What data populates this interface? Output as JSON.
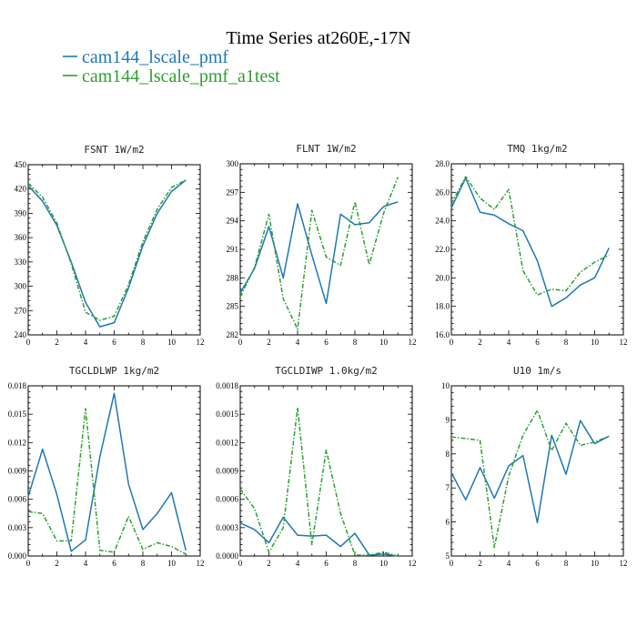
{
  "figure": {
    "title": "Time Series at260E,-17N",
    "legend": [
      {
        "label": "cam144_lscale_pmf",
        "color": "#1f77b4",
        "style": "solid"
      },
      {
        "label": "cam144_lscale_pmf_a1test",
        "color": "#2ca02c",
        "style": "dashed"
      }
    ]
  },
  "chart_data": [
    {
      "type": "line",
      "title": "FSNT 1W/m2",
      "x": [
        0,
        1,
        2,
        3,
        4,
        5,
        6,
        7,
        8,
        9,
        10,
        11
      ],
      "xticks": [
        0,
        2,
        4,
        6,
        8,
        10,
        12
      ],
      "xlim": [
        0,
        12
      ],
      "ylim": [
        240,
        450
      ],
      "yticks": [
        240,
        270,
        300,
        330,
        360,
        390,
        420,
        450
      ],
      "ytick_labels": [
        "240",
        "270",
        "300",
        "330",
        "360",
        "390",
        "420",
        "450"
      ],
      "series": [
        {
          "name": "cam144_lscale_pmf",
          "color": "#1f77b4",
          "dashed": false,
          "values": [
            424,
            405,
            375,
            330,
            280,
            250,
            255,
            298,
            350,
            390,
            417,
            431
          ]
        },
        {
          "name": "cam144_lscale_pmf_a1test",
          "color": "#2ca02c",
          "dashed": true,
          "values": [
            427,
            410,
            378,
            328,
            268,
            258,
            263,
            302,
            355,
            395,
            422,
            431
          ]
        }
      ]
    },
    {
      "type": "line",
      "title": "FLNT 1W/m2",
      "x": [
        0,
        1,
        2,
        3,
        4,
        5,
        6,
        7,
        8,
        9,
        10,
        11
      ],
      "xticks": [
        0,
        2,
        4,
        6,
        8,
        10,
        12
      ],
      "xlim": [
        0,
        12
      ],
      "ylim": [
        282,
        300
      ],
      "yticks": [
        282,
        285,
        288,
        291,
        294,
        297,
        300
      ],
      "ytick_labels": [
        "282",
        "285",
        "288",
        "291",
        "294",
        "297",
        "300"
      ],
      "series": [
        {
          "name": "cam144_lscale_pmf",
          "color": "#1f77b4",
          "dashed": false,
          "values": [
            286.4,
            289.0,
            293.4,
            288.0,
            295.8,
            290.4,
            285.3,
            294.7,
            293.6,
            293.8,
            295.5,
            296.0
          ]
        },
        {
          "name": "cam144_lscale_pmf_a1test",
          "color": "#2ca02c",
          "dashed": true,
          "values": [
            286.0,
            289.1,
            294.7,
            285.8,
            282.6,
            295.1,
            290.2,
            289.3,
            296.0,
            289.4,
            294.8,
            298.6
          ]
        }
      ]
    },
    {
      "type": "line",
      "title": "TMQ 1kg/m2",
      "x": [
        0,
        1,
        2,
        3,
        4,
        5,
        6,
        7,
        8,
        9,
        10,
        11
      ],
      "xticks": [
        0,
        2,
        4,
        6,
        8,
        10,
        12
      ],
      "xlim": [
        0,
        12
      ],
      "ylim": [
        16,
        28
      ],
      "yticks": [
        16,
        18,
        20,
        22,
        24,
        26,
        28
      ],
      "ytick_labels": [
        "16.0",
        "18.0",
        "20.0",
        "22.0",
        "24.0",
        "26.0",
        "28.0"
      ],
      "series": [
        {
          "name": "cam144_lscale_pmf",
          "color": "#1f77b4",
          "dashed": false,
          "values": [
            24.9,
            27.0,
            24.6,
            24.4,
            23.8,
            23.3,
            21.2,
            18.0,
            18.6,
            19.5,
            20.0,
            22.1
          ]
        },
        {
          "name": "cam144_lscale_pmf_a1test",
          "color": "#2ca02c",
          "dashed": true,
          "values": [
            25.2,
            27.1,
            25.6,
            24.8,
            26.2,
            20.5,
            18.8,
            19.2,
            19.1,
            20.4,
            21.1,
            21.6
          ]
        }
      ]
    },
    {
      "type": "line",
      "title": "TGCLDLWP 1kg/m2",
      "x": [
        0,
        1,
        2,
        3,
        4,
        5,
        6,
        7,
        8,
        9,
        10,
        11
      ],
      "xticks": [
        0,
        2,
        4,
        6,
        8,
        10,
        12
      ],
      "xlim": [
        0,
        12
      ],
      "ylim": [
        0,
        0.018
      ],
      "yticks": [
        0,
        0.003,
        0.006,
        0.009,
        0.012,
        0.015,
        0.018
      ],
      "ytick_labels": [
        "0.000",
        "0.003",
        "0.006",
        "0.009",
        "0.012",
        "0.015",
        "0.018"
      ],
      "series": [
        {
          "name": "cam144_lscale_pmf",
          "color": "#1f77b4",
          "dashed": false,
          "values": [
            0.0063,
            0.0113,
            0.0065,
            0.0005,
            0.0017,
            0.0105,
            0.0172,
            0.0076,
            0.0028,
            0.0045,
            0.0067,
            0.0006
          ]
        },
        {
          "name": "cam144_lscale_pmf_a1test",
          "color": "#2ca02c",
          "dashed": true,
          "values": [
            0.0047,
            0.0045,
            0.0016,
            0.0016,
            0.0156,
            0.0006,
            0.0004,
            0.0042,
            0.0007,
            0.0014,
            0.001,
            0.0002
          ]
        }
      ]
    },
    {
      "type": "line",
      "title": "TGCLDIWP 1.0kg/m2",
      "x": [
        0,
        1,
        2,
        3,
        4,
        5,
        6,
        7,
        8,
        9,
        10,
        11
      ],
      "xticks": [
        0,
        2,
        4,
        6,
        8,
        10,
        12
      ],
      "xlim": [
        0,
        12
      ],
      "ylim": [
        0,
        0.0018
      ],
      "yticks": [
        0,
        0.0003,
        0.0006,
        0.0009,
        0.0012,
        0.0015,
        0.0018
      ],
      "ytick_labels": [
        "0.0000",
        "0.0003",
        "0.0006",
        "0.0009",
        "0.0012",
        "0.0015",
        "0.0018"
      ],
      "series": [
        {
          "name": "cam144_lscale_pmf",
          "color": "#1f77b4",
          "dashed": false,
          "values": [
            0.00035,
            0.00028,
            0.00014,
            0.00041,
            0.00022,
            0.00021,
            0.00022,
            0.0001,
            0.00024,
            1e-05,
            2e-05,
            0.0
          ]
        },
        {
          "name": "cam144_lscale_pmf_a1test",
          "color": "#2ca02c",
          "dashed": true,
          "values": [
            0.00071,
            0.0005,
            4e-05,
            0.0003,
            0.00157,
            0.00012,
            0.00112,
            0.00045,
            1e-05,
            1e-05,
            4e-05,
            0.0
          ]
        }
      ]
    },
    {
      "type": "line",
      "title": "U10 1m/s",
      "x": [
        0,
        1,
        2,
        3,
        4,
        5,
        6,
        7,
        8,
        9,
        10,
        11
      ],
      "xticks": [
        0,
        2,
        4,
        6,
        8,
        10,
        12
      ],
      "xlim": [
        0,
        12
      ],
      "ylim": [
        5,
        10
      ],
      "yticks": [
        5,
        6,
        7,
        8,
        9,
        10
      ],
      "ytick_labels": [
        "5",
        "6",
        "7",
        "8",
        "9",
        "10"
      ],
      "series": [
        {
          "name": "cam144_lscale_pmf",
          "color": "#1f77b4",
          "dashed": false,
          "values": [
            7.45,
            6.65,
            7.6,
            6.7,
            7.65,
            7.95,
            5.98,
            8.55,
            7.4,
            8.98,
            8.3,
            8.52
          ]
        },
        {
          "name": "cam144_lscale_pmf_a1test",
          "color": "#2ca02c",
          "dashed": true,
          "values": [
            8.5,
            8.45,
            8.4,
            5.25,
            7.35,
            8.55,
            9.28,
            8.1,
            8.9,
            8.25,
            8.35,
            8.52
          ]
        }
      ]
    }
  ]
}
